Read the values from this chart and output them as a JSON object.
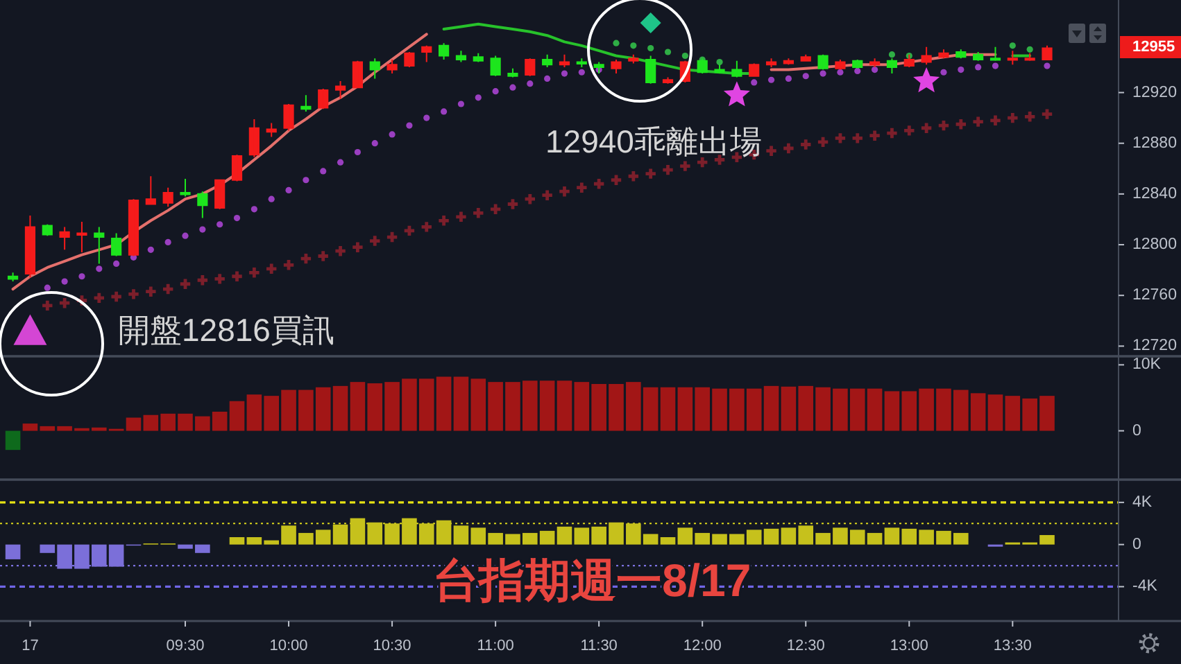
{
  "chart_data": [
    {
      "type": "candlestick",
      "categories": [
        null,
        null,
        null,
        null,
        null,
        null,
        null,
        null,
        null,
        null,
        null,
        null,
        null,
        null,
        null,
        null,
        null,
        null,
        null,
        null,
        null,
        null,
        null,
        null,
        null,
        null,
        null,
        null,
        null,
        null,
        null,
        null,
        null,
        null,
        null,
        null,
        null,
        null,
        null,
        null,
        null,
        null,
        null,
        null,
        null,
        null,
        null,
        null,
        null,
        null,
        null,
        null,
        null,
        null,
        null,
        null,
        null,
        null,
        null,
        null,
        null
      ],
      "tick_labels": "y",
      "ylim": [
        12712,
        12993
      ],
      "yticks": [
        12720,
        12760,
        12800,
        12840,
        12880,
        12920
      ],
      "ohlc": [
        [
          12775,
          12778,
          12771,
          12773
        ],
        [
          12777,
          12823,
          12774,
          12814
        ],
        [
          12815,
          12816,
          12807,
          12808
        ],
        [
          12806,
          12814,
          12796,
          12810
        ],
        [
          12808,
          12818,
          12794,
          12809
        ],
        [
          12809,
          12814,
          12785,
          12806
        ],
        [
          12805,
          12809,
          12791,
          12792
        ],
        [
          12792,
          12836,
          12791,
          12835
        ],
        [
          12832,
          12854,
          12832,
          12836
        ],
        [
          12833,
          12845,
          12830,
          12841
        ],
        [
          12841,
          12852,
          12838,
          12840
        ],
        [
          12840,
          12842,
          12821,
          12831
        ],
        [
          12829,
          12851,
          12828,
          12851
        ],
        [
          12851,
          12871,
          12850,
          12870
        ],
        [
          12871,
          12899,
          12869,
          12892
        ],
        [
          12889,
          12896,
          12885,
          12891
        ],
        [
          12892,
          12911,
          12890,
          12910
        ],
        [
          12909,
          12918,
          12905,
          12907
        ],
        [
          12908,
          12923,
          12907,
          12922
        ],
        [
          12922,
          12929,
          12915,
          12925
        ],
        [
          12924,
          12945,
          12924,
          12944
        ],
        [
          12944,
          12947,
          12931,
          12938
        ],
        [
          12938,
          12946,
          12935,
          12942
        ],
        [
          12941,
          12952,
          12940,
          12951
        ],
        [
          12952,
          12957,
          12944,
          12956
        ],
        [
          12957,
          12959,
          12946,
          12949
        ],
        [
          12949,
          12953,
          12944,
          12946
        ],
        [
          12948,
          12951,
          12944,
          12945
        ],
        [
          12947,
          12949,
          12933,
          12934
        ],
        [
          12935,
          12939,
          12932,
          12933
        ],
        [
          12934,
          12947,
          12933,
          12946
        ],
        [
          12946,
          12950,
          12940,
          12942
        ],
        [
          12942,
          12950,
          12940,
          12944
        ],
        [
          12944,
          12947,
          12940,
          12943
        ],
        [
          12942,
          12944,
          12935,
          12940
        ],
        [
          12939,
          12946,
          12935,
          12944
        ],
        [
          12945,
          12950,
          12943,
          12947
        ],
        [
          12946,
          12949,
          12927,
          12928
        ],
        [
          12928,
          12932,
          12927,
          12930
        ],
        [
          12929,
          12945,
          12928,
          12944
        ],
        [
          12945,
          12947,
          12935,
          12936
        ],
        [
          12938,
          12942,
          12935,
          12936
        ],
        [
          12938,
          12945,
          12932,
          12933
        ],
        [
          12933,
          12943,
          12933,
          12942
        ],
        [
          12942,
          12947,
          12940,
          12944
        ],
        [
          12943,
          12947,
          12942,
          12945
        ],
        [
          12945,
          12950,
          12945,
          12948
        ],
        [
          12949,
          12950,
          12938,
          12939
        ],
        [
          12939,
          12946,
          12938,
          12944
        ],
        [
          12945,
          12946,
          12939,
          12940
        ],
        [
          12942,
          12947,
          12940,
          12944
        ],
        [
          12945,
          12947,
          12935,
          12940
        ],
        [
          12941,
          12950,
          12940,
          12946
        ],
        [
          12944,
          12956,
          12942,
          12949
        ],
        [
          12948,
          12954,
          12947,
          12951
        ],
        [
          12952,
          12954,
          12947,
          12948
        ],
        [
          12950,
          12952,
          12945,
          12946
        ],
        [
          12947,
          12956,
          12945,
          12946
        ],
        [
          12946,
          12953,
          12942,
          12947
        ],
        [
          12946,
          12951,
          12945,
          12947
        ],
        [
          12946,
          12957,
          12946,
          12955
        ]
      ],
      "colors": [
        "#1de51d",
        "#f51b1b",
        "#1de51d",
        "#f51b1b",
        "#f51b1b",
        "#1de51d",
        "#1de51d",
        "#f51b1b",
        "#f51b1b",
        "#f51b1b",
        "#1de51d",
        "#1de51d",
        "#f51b1b",
        "#f51b1b",
        "#f51b1b",
        "#f51b1b",
        "#f51b1b",
        "#1de51d",
        "#f51b1b",
        "#f51b1b",
        "#f51b1b",
        "#1de51d",
        "#f51b1b",
        "#f51b1b",
        "#f51b1b",
        "#1de51d",
        "#1de51d",
        "#1de51d",
        "#1de51d",
        "#1de51d",
        "#f51b1b",
        "#1de51d",
        "#f51b1b",
        "#1de51d",
        "#1de51d",
        "#f51b1b",
        "#f51b1b",
        "#1de51d",
        "#f51b1b",
        "#f51b1b",
        "#1de51d",
        "#1de51d",
        "#1de51d",
        "#f51b1b",
        "#f51b1b",
        "#f51b1b",
        "#f51b1b",
        "#1de51d",
        "#f51b1b",
        "#1de51d",
        "#f51b1b",
        "#1de51d",
        "#f51b1b",
        "#f51b1b",
        "#f51b1b",
        "#1de51d",
        "#1de51d",
        "#1de51d",
        "#f51b1b",
        "#f51b1b",
        "#f51b1b"
      ],
      "series": [
        {
          "type": "line",
          "color": "#e4706c",
          "values": [
            12765,
            12775,
            12782,
            12787,
            12792,
            12796,
            12800,
            12810,
            12819,
            12827,
            12836,
            12840,
            12847,
            12856,
            12867,
            12878,
            12890,
            12899,
            12909,
            12916,
            12925,
            12936,
            12946,
            12956,
            12966,
            null,
            null,
            null,
            null,
            null,
            null,
            null,
            null,
            null,
            null,
            null,
            null,
            null,
            null,
            null,
            null,
            null,
            null,
            null,
            12938,
            12938,
            12939,
            12940,
            12941,
            12942,
            12942,
            12942,
            12944,
            12946,
            12948,
            12950,
            12950,
            12950,
            null,
            null,
            null
          ]
        },
        {
          "type": "line",
          "color": "#27c22b",
          "values": [
            null,
            null,
            null,
            null,
            null,
            null,
            null,
            null,
            null,
            null,
            null,
            null,
            null,
            null,
            null,
            null,
            null,
            null,
            null,
            null,
            null,
            null,
            null,
            null,
            null,
            12970,
            12972,
            12974,
            12972,
            12970,
            12968,
            12965,
            12960,
            12957,
            12953,
            12949,
            12947,
            12944,
            12941,
            12938,
            12937,
            12936,
            12935,
            12935,
            null,
            null,
            null,
            null,
            null,
            null,
            null,
            null,
            null,
            null,
            null,
            null,
            null,
            null,
            12949,
            12949,
            null
          ]
        },
        {
          "type": "scatter",
          "marker": "circle",
          "color": "#9a3fc0",
          "values": [
            null,
            null,
            12766,
            12771,
            12775,
            12781,
            12785,
            12790,
            12796,
            12802,
            12807,
            12812,
            12816,
            12821,
            12828,
            12836,
            12843,
            12851,
            12858,
            12865,
            12873,
            12880,
            12887,
            12894,
            12900,
            12905,
            12911,
            12916,
            12921,
            12924,
            12927,
            12931,
            12935,
            12936,
            12938,
            null,
            null,
            null,
            null,
            null,
            null,
            null,
            null,
            12928,
            12930,
            12931,
            12933,
            12935,
            12936,
            12937,
            12938,
            null,
            null,
            null,
            12936,
            12938,
            12940,
            12941,
            null,
            null,
            12941
          ]
        },
        {
          "type": "scatter",
          "marker": "circle",
          "color": "#2fae45",
          "values": [
            null,
            null,
            null,
            null,
            null,
            null,
            null,
            null,
            null,
            null,
            null,
            null,
            null,
            null,
            null,
            null,
            null,
            null,
            null,
            null,
            null,
            null,
            null,
            null,
            null,
            null,
            null,
            null,
            null,
            null,
            null,
            null,
            null,
            null,
            null,
            12959,
            12957,
            12955,
            12952,
            12949,
            12946,
            12944,
            null,
            null,
            null,
            null,
            null,
            null,
            null,
            null,
            null,
            12950,
            12949,
            null,
            null,
            null,
            null,
            null,
            12957,
            12954,
            null
          ]
        },
        {
          "type": "scatter",
          "marker": "cross",
          "color": "#7c1f2b",
          "values": [
            null,
            null,
            12752,
            12754,
            12756,
            12758,
            12759,
            12761,
            12763,
            12765,
            12769,
            12772,
            12773,
            12775,
            12778,
            12781,
            12784,
            12789,
            12791,
            12795,
            12798,
            12803,
            12806,
            12811,
            12814,
            12819,
            12822,
            12825,
            12828,
            12832,
            12836,
            12839,
            12842,
            12845,
            12848,
            12851,
            12854,
            12856,
            12859,
            12862,
            12865,
            12867,
            12869,
            12871,
            12874,
            12876,
            12879,
            12881,
            12884,
            12884,
            12886,
            12888,
            12890,
            12892,
            12894,
            12895,
            12897,
            12898,
            12900,
            12901,
            12903
          ]
        },
        {
          "type": "scatter",
          "marker": "triangle",
          "color": "#d446d4",
          "values": [
            null,
            12732,
            null,
            null,
            null,
            null,
            null,
            null,
            null,
            null,
            null,
            null,
            null,
            null,
            null,
            null,
            null,
            null,
            null,
            null,
            null,
            null,
            null,
            null,
            null,
            null,
            null,
            null,
            null,
            null,
            null,
            null,
            null,
            null,
            null,
            null,
            null,
            null,
            null,
            null,
            null,
            null,
            null,
            null,
            null,
            null,
            null,
            null,
            null,
            null,
            null,
            null,
            null,
            null,
            null,
            null,
            null,
            null,
            null,
            null,
            null
          ]
        },
        {
          "type": "scatter",
          "marker": "diamond",
          "color": "#1fc489",
          "values": [
            null,
            null,
            null,
            null,
            null,
            null,
            null,
            null,
            null,
            null,
            null,
            null,
            null,
            null,
            null,
            null,
            null,
            null,
            null,
            null,
            null,
            null,
            null,
            null,
            null,
            null,
            null,
            null,
            null,
            null,
            null,
            null,
            null,
            null,
            null,
            null,
            null,
            12975,
            null,
            null,
            null,
            null,
            null,
            null,
            null,
            null,
            null,
            null,
            null,
            null,
            null,
            null,
            null,
            null,
            null,
            null,
            null,
            null,
            null,
            null,
            null
          ]
        },
        {
          "type": "scatter",
          "marker": "star",
          "color": "#e045e2",
          "values": [
            null,
            null,
            null,
            null,
            null,
            null,
            null,
            null,
            null,
            null,
            null,
            null,
            null,
            null,
            null,
            null,
            null,
            null,
            null,
            null,
            null,
            null,
            null,
            null,
            null,
            null,
            null,
            null,
            null,
            null,
            null,
            null,
            null,
            null,
            null,
            null,
            null,
            null,
            null,
            null,
            null,
            null,
            12918,
            null,
            null,
            null,
            null,
            null,
            null,
            null,
            null,
            null,
            null,
            12929,
            null,
            null,
            null,
            null,
            null,
            null,
            null
          ]
        }
      ],
      "annotations": [
        "開盤12816買訊",
        "12940乖離出場",
        "12955"
      ]
    },
    {
      "type": "bar",
      "categories": [
        null,
        null,
        null,
        null,
        null,
        null,
        null,
        null,
        null,
        null,
        null,
        null,
        null,
        null,
        null,
        null,
        null,
        null,
        null,
        null,
        null,
        null,
        null,
        null,
        null,
        null,
        null,
        null,
        null,
        null,
        null,
        null,
        null,
        null,
        null,
        null,
        null,
        null,
        null,
        null,
        null,
        null,
        null,
        null,
        null,
        null,
        null,
        null,
        null,
        null,
        null,
        null,
        null,
        null,
        null,
        null,
        null,
        null,
        null,
        null,
        null
      ],
      "tick_labels": "y",
      "ylim": [
        -7400,
        11300
      ],
      "yticks": [
        {
          "value": 10000,
          "label": "10K"
        },
        0
      ],
      "values": [
        -2900,
        1100,
        700,
        700,
        400,
        500,
        300,
        2000,
        2400,
        2600,
        2600,
        2200,
        2900,
        4500,
        5500,
        5300,
        6200,
        6200,
        6600,
        6800,
        7400,
        7200,
        7400,
        7900,
        7900,
        8200,
        8200,
        7900,
        7400,
        7400,
        7600,
        7600,
        7600,
        7400,
        7100,
        7100,
        7400,
        6600,
        6600,
        6600,
        6600,
        6400,
        6400,
        6400,
        6800,
        6700,
        6800,
        6600,
        6400,
        6400,
        6400,
        6000,
        6000,
        6400,
        6400,
        6200,
        5700,
        5500,
        5300,
        4900,
        5300
      ],
      "colors": [
        "#0e6a1c",
        "#a21616",
        "#a21616",
        "#a21616",
        "#a21616",
        "#a21616",
        "#a21616",
        "#a21616",
        "#a21616",
        "#a21616",
        "#a21616",
        "#a21616",
        "#a21616",
        "#a21616",
        "#a21616",
        "#a21616",
        "#a21616",
        "#a21616",
        "#a21616",
        "#a21616",
        "#a21616",
        "#a21616",
        "#a21616",
        "#a21616",
        "#a21616",
        "#a21616",
        "#a21616",
        "#a21616",
        "#a21616",
        "#a21616",
        "#a21616",
        "#a21616",
        "#a21616",
        "#a21616",
        "#a21616",
        "#a21616",
        "#a21616",
        "#a21616",
        "#a21616",
        "#a21616",
        "#a21616",
        "#a21616",
        "#a21616",
        "#a21616",
        "#a21616",
        "#a21616",
        "#a21616",
        "#a21616",
        "#a21616",
        "#a21616",
        "#a21616",
        "#a21616",
        "#a21616",
        "#a21616",
        "#a21616",
        "#a21616",
        "#a21616",
        "#a21616",
        "#a21616",
        "#a21616",
        "#a21616"
      ]
    },
    {
      "type": "bar",
      "categories": [
        null,
        "17",
        null,
        null,
        null,
        null,
        null,
        null,
        null,
        null,
        "09:30",
        null,
        null,
        null,
        null,
        null,
        "10:00",
        null,
        null,
        null,
        null,
        null,
        "10:30",
        null,
        null,
        null,
        null,
        null,
        "11:00",
        null,
        null,
        null,
        null,
        null,
        "11:30",
        null,
        null,
        null,
        null,
        null,
        "12:00",
        null,
        null,
        null,
        null,
        null,
        "12:30",
        null,
        null,
        null,
        null,
        null,
        "13:00",
        null,
        null,
        null,
        null,
        null,
        "13:30",
        null,
        null
      ],
      "ylim": [
        -7260,
        6160
      ],
      "yticks": [
        {
          "value": 4000,
          "label": "4K"
        },
        0,
        {
          "value": -4000,
          "label": "-4K"
        }
      ],
      "values": [
        -1400,
        null,
        -800,
        -2300,
        -2300,
        -2100,
        -2100,
        -100,
        100,
        100,
        -400,
        -800,
        null,
        700,
        700,
        400,
        1800,
        1100,
        1400,
        1900,
        2500,
        2100,
        2000,
        2500,
        2000,
        2300,
        1800,
        1600,
        1100,
        1000,
        1100,
        1300,
        1700,
        1600,
        1700,
        2100,
        2000,
        1000,
        700,
        1600,
        1100,
        1000,
        1000,
        1400,
        1500,
        1600,
        1800,
        1100,
        1600,
        1400,
        1100,
        1600,
        1500,
        1400,
        1300,
        1100,
        null,
        -200,
        200,
        200,
        900
      ],
      "colors": [
        "#7b6fd9",
        null,
        "#7b6fd9",
        "#7b6fd9",
        "#7b6fd9",
        "#7b6fd9",
        "#7b6fd9",
        "#7b6fd9",
        "#c6c11c",
        "#c6c11c",
        "#7b6fd9",
        "#7b6fd9",
        null,
        "#c6c11c",
        "#c6c11c",
        "#c6c11c",
        "#c6c11c",
        "#c6c11c",
        "#c6c11c",
        "#c6c11c",
        "#c6c11c",
        "#c6c11c",
        "#c6c11c",
        "#c6c11c",
        "#c6c11c",
        "#c6c11c",
        "#c6c11c",
        "#c6c11c",
        "#c6c11c",
        "#c6c11c",
        "#c6c11c",
        "#c6c11c",
        "#c6c11c",
        "#c6c11c",
        "#c6c11c",
        "#c6c11c",
        "#c6c11c",
        "#c6c11c",
        "#c6c11c",
        "#c6c11c",
        "#c6c11c",
        "#c6c11c",
        "#c6c11c",
        "#c6c11c",
        "#c6c11c",
        "#c6c11c",
        "#c6c11c",
        "#c6c11c",
        "#c6c11c",
        "#c6c11c",
        "#c6c11c",
        "#c6c11c",
        "#c6c11c",
        "#c6c11c",
        "#c6c11c",
        "#c6c11c",
        null,
        "#7b6fd9",
        "#c6c11c",
        "#c6c11c",
        "#c6c11c"
      ],
      "ref_lines": [
        {
          "axis": "y",
          "value": 4000,
          "color": "#e6e214",
          "line_style": "dashed"
        },
        {
          "axis": "y",
          "value": 2000,
          "color": "#d9d51c",
          "line_style": "dotted"
        },
        {
          "axis": "y",
          "value": -2000,
          "color": "#7c72e0",
          "line_style": "dotted"
        },
        {
          "axis": "y",
          "value": -4000,
          "color": "#7066e6",
          "line_style": "dashed"
        }
      ],
      "annotations": [
        "台指期週一8/17"
      ]
    }
  ]
}
